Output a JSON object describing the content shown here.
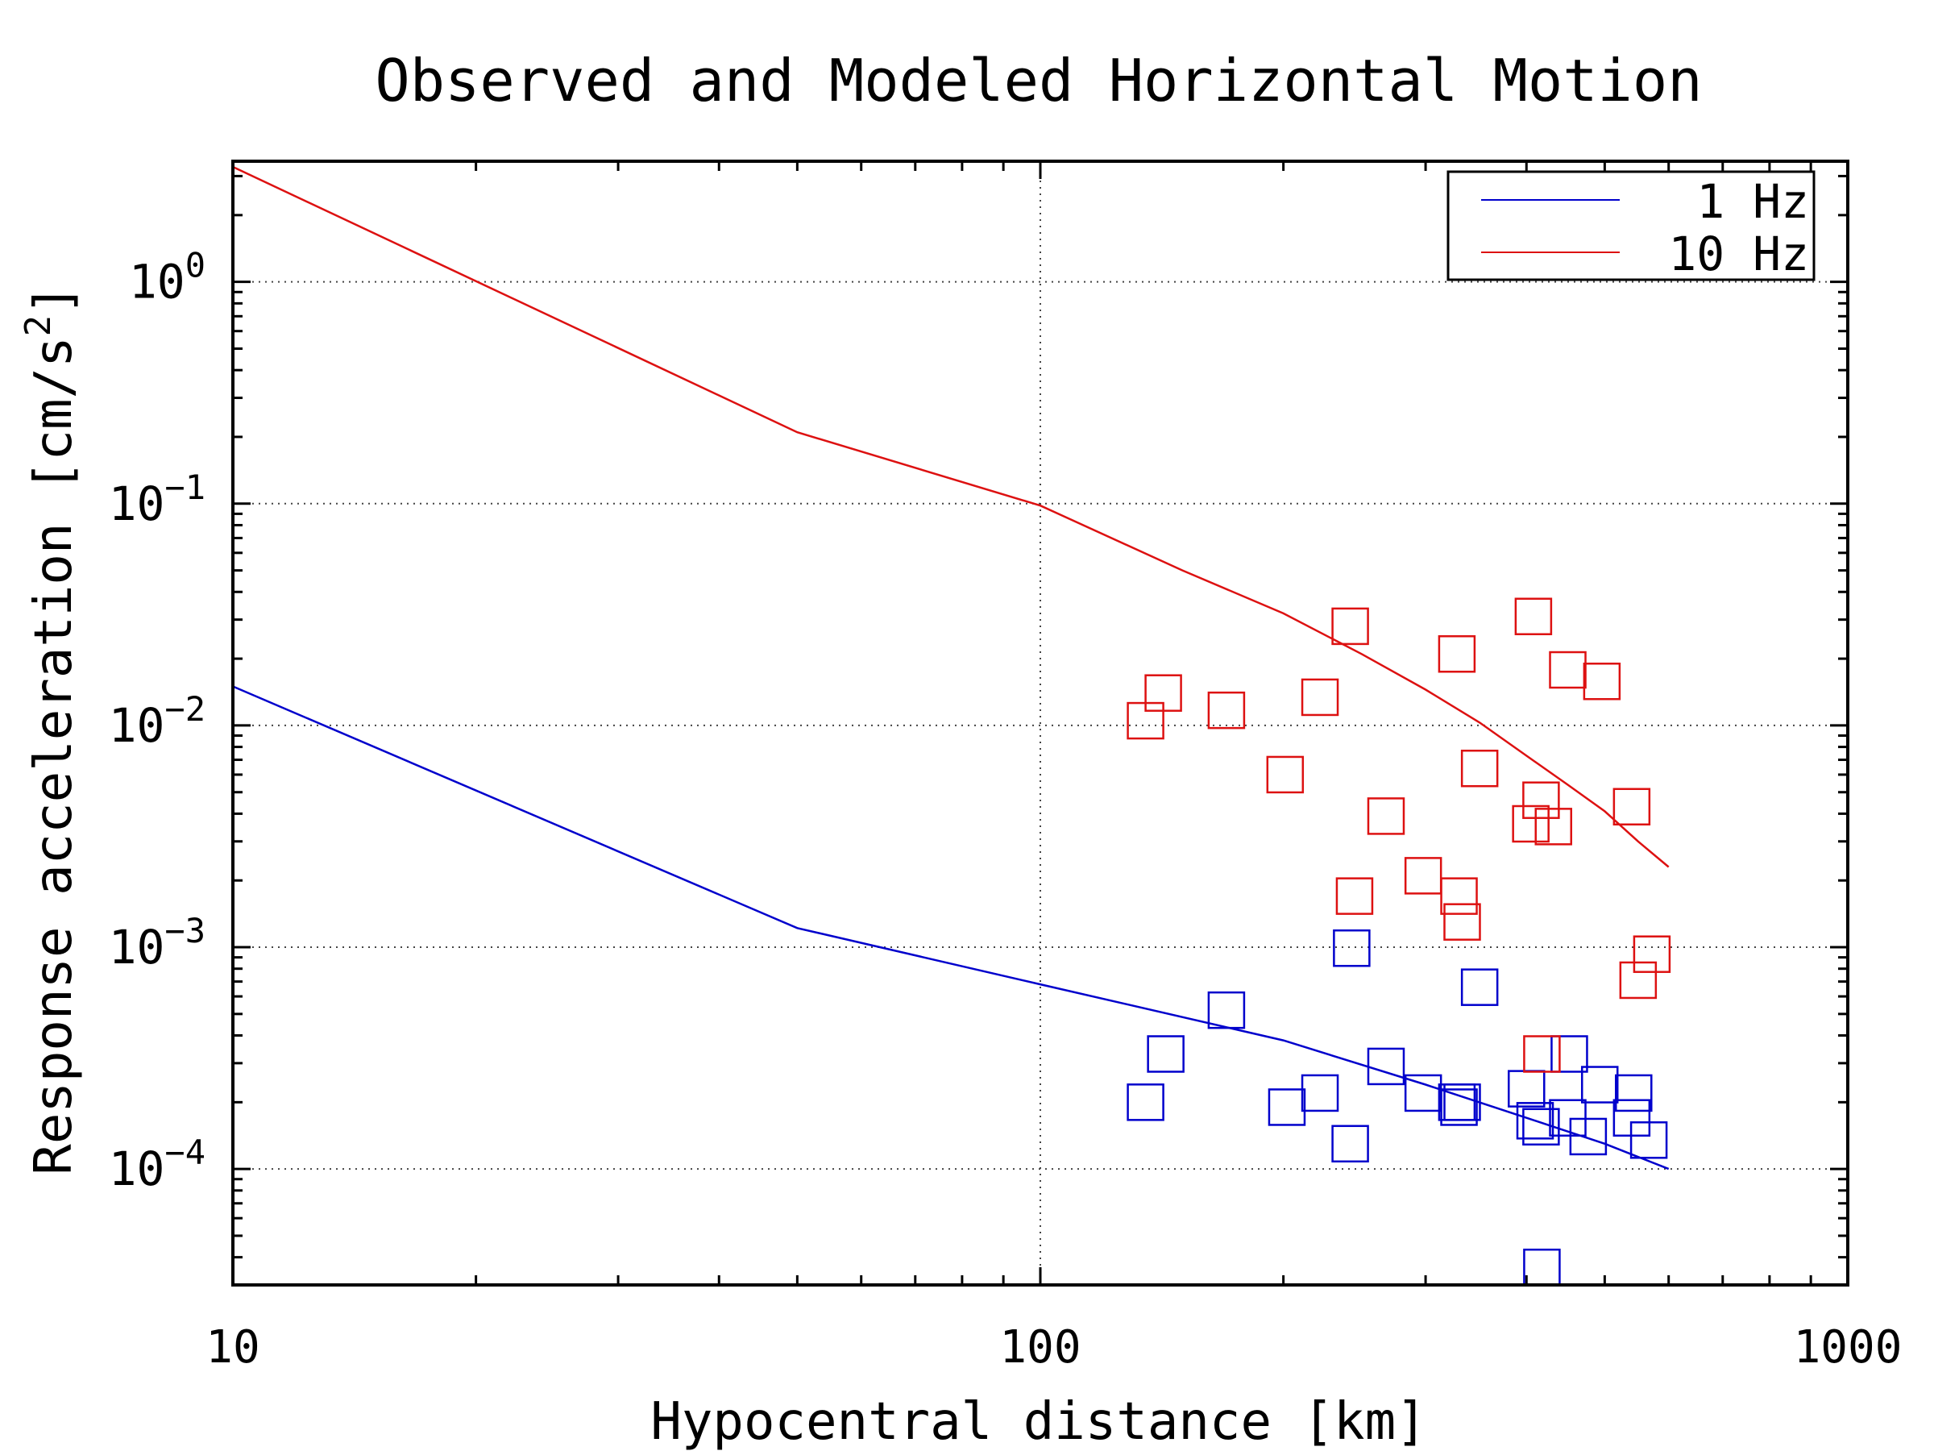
{
  "chart_data": {
    "type": "scatter",
    "title": "Observed and Modeled Horizontal Motion",
    "xlabel": "Hypocentral distance [km]",
    "ylabel": "Response acceleration [cm/s²]",
    "xscale": "log",
    "yscale": "log",
    "xlim": [
      10,
      1000
    ],
    "ylim": [
      3e-05,
      3.5
    ],
    "grid": "dotted, major ticks",
    "legend_position": "top-right",
    "x_ticks": [
      {
        "value": 10,
        "label": "10"
      },
      {
        "value": 100,
        "label": "100"
      },
      {
        "value": 1000,
        "label": "1000"
      }
    ],
    "y_ticks": [
      {
        "value": 1,
        "base": "10",
        "exp": "0"
      },
      {
        "value": 0.1,
        "base": "10",
        "exp": "−1"
      },
      {
        "value": 0.01,
        "base": "10",
        "exp": "−2"
      },
      {
        "value": 0.001,
        "base": "10",
        "exp": "−3"
      },
      {
        "value": 0.0001,
        "base": "10",
        "exp": "−4"
      }
    ],
    "lines": [
      {
        "name": "1 Hz",
        "color": "#0000cc",
        "x": [
          10,
          50,
          100,
          200,
          300,
          400,
          500,
          600
        ],
        "y": [
          0.015,
          0.00122,
          0.00068,
          0.00038,
          0.00024,
          0.00017,
          0.00013,
          0.0001
        ]
      },
      {
        "name": "10 Hz",
        "color": "#dd1111",
        "x": [
          10,
          50,
          100,
          150,
          200,
          250,
          300,
          350,
          400,
          450,
          500,
          550,
          600
        ],
        "y": [
          3.3,
          0.21,
          0.098,
          0.05,
          0.032,
          0.021,
          0.0145,
          0.0103,
          0.0073,
          0.0054,
          0.0041,
          0.003,
          0.0023
        ]
      }
    ],
    "scatter": [
      {
        "name": "Observed 1 Hz",
        "color": "#0000cc",
        "marker": "open-square",
        "x": [
          135,
          143,
          170,
          202,
          222,
          242,
          243,
          268,
          298,
          328,
          330,
          333,
          350,
          400,
          410,
          417,
          418,
          450,
          452,
          477,
          493,
          540,
          543,
          567
        ],
        "y": [
          0.0002,
          0.00033,
          0.00052,
          0.00019,
          0.00022,
          0.00013,
          0.00099,
          0.00029,
          0.00022,
          0.0002,
          0.00019,
          0.0002,
          0.00066,
          0.00023,
          0.000165,
          0.000155,
          3.6e-05,
          0.00017,
          0.00033,
          0.00014,
          0.00024,
          0.00017,
          0.00022,
          0.000135
        ]
      },
      {
        "name": "Observed 10 Hz",
        "color": "#dd1111",
        "marker": "open-square",
        "x": [
          135,
          142,
          170,
          201,
          222,
          242,
          245,
          268,
          298,
          328,
          330,
          333,
          350,
          405,
          408,
          417,
          432,
          450,
          496,
          540,
          550,
          572,
          418
        ],
        "y": [
          0.0105,
          0.014,
          0.0117,
          0.006,
          0.0134,
          0.028,
          0.0017,
          0.0039,
          0.0021,
          0.021,
          0.0017,
          0.0013,
          0.0064,
          0.0036,
          0.031,
          0.0046,
          0.0035,
          0.0178,
          0.0158,
          0.0043,
          0.00071,
          0.00093,
          0.00033
        ]
      }
    ]
  },
  "legend": {
    "items": [
      {
        "label": "1 Hz",
        "color": "#0000cc"
      },
      {
        "label": "10 Hz",
        "color": "#dd1111"
      }
    ]
  }
}
